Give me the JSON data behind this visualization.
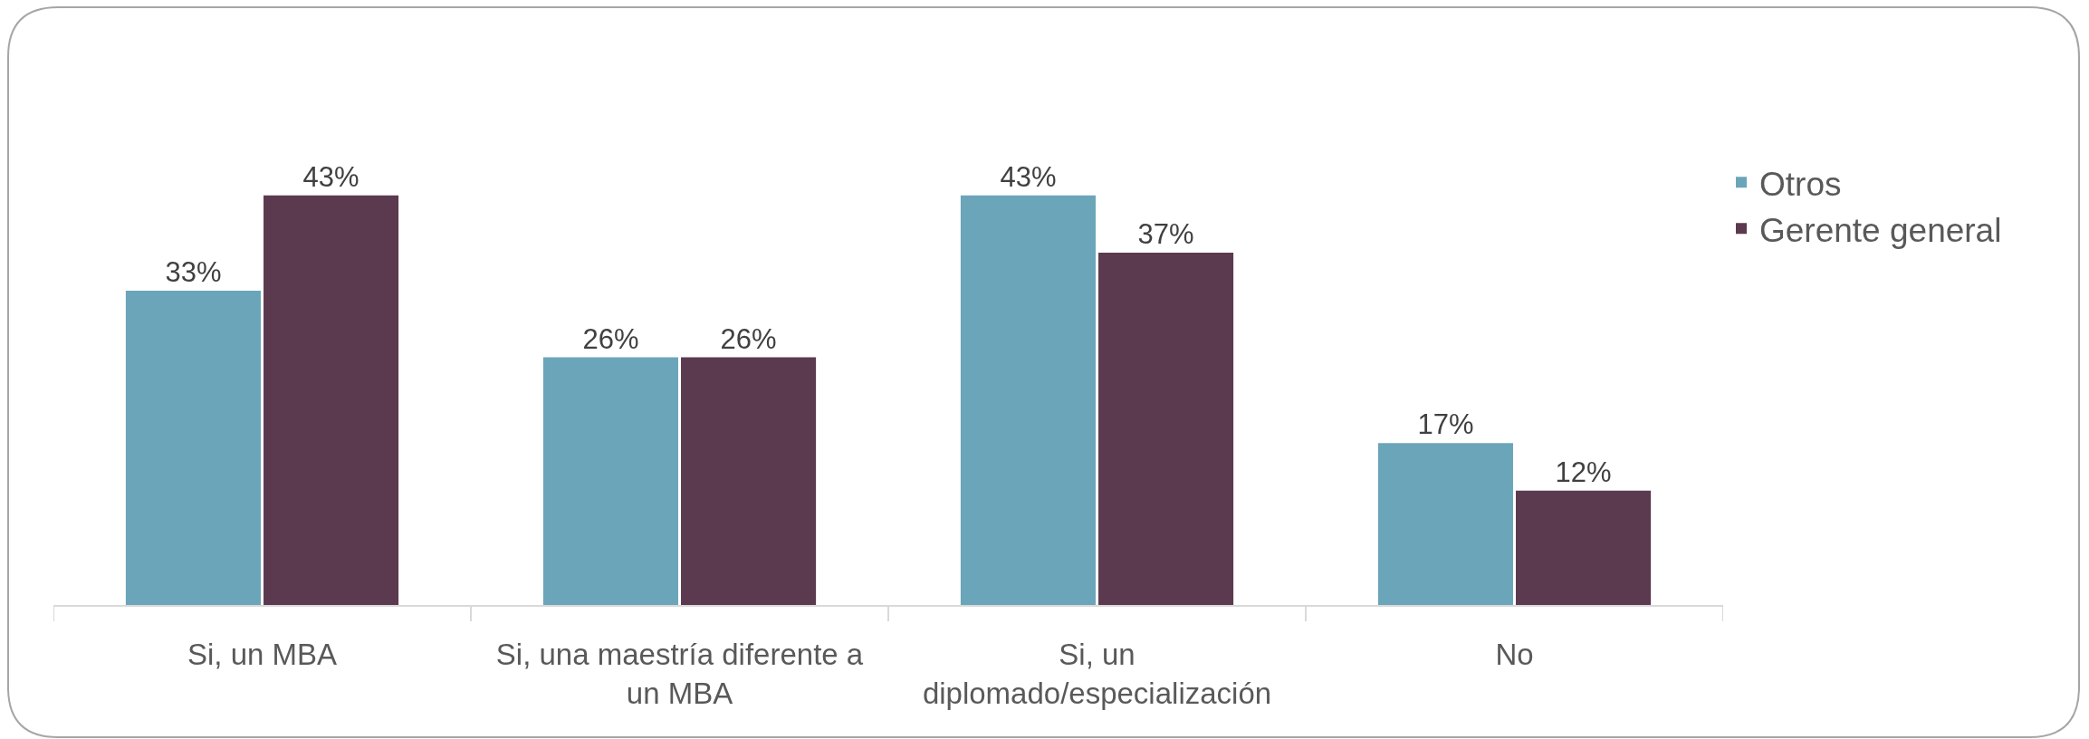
{
  "chart_data": {
    "type": "bar",
    "categories": [
      "Si, un MBA",
      "Si, una maestría diferente a un MBA",
      "Si, un diplomado/especialización",
      "No"
    ],
    "series": [
      {
        "name": "Otros",
        "color": "#6ba5ba",
        "values": [
          33,
          26,
          43,
          17
        ],
        "value_labels": [
          "33%",
          "26%",
          "43%",
          "17%"
        ]
      },
      {
        "name": "Gerente general",
        "color": "#5b3a4f",
        "values": [
          43,
          26,
          37,
          12
        ],
        "value_labels": [
          "43%",
          "26%",
          "37%",
          "12%"
        ]
      }
    ],
    "tick_labels": "x",
    "legend": "top right"
  }
}
